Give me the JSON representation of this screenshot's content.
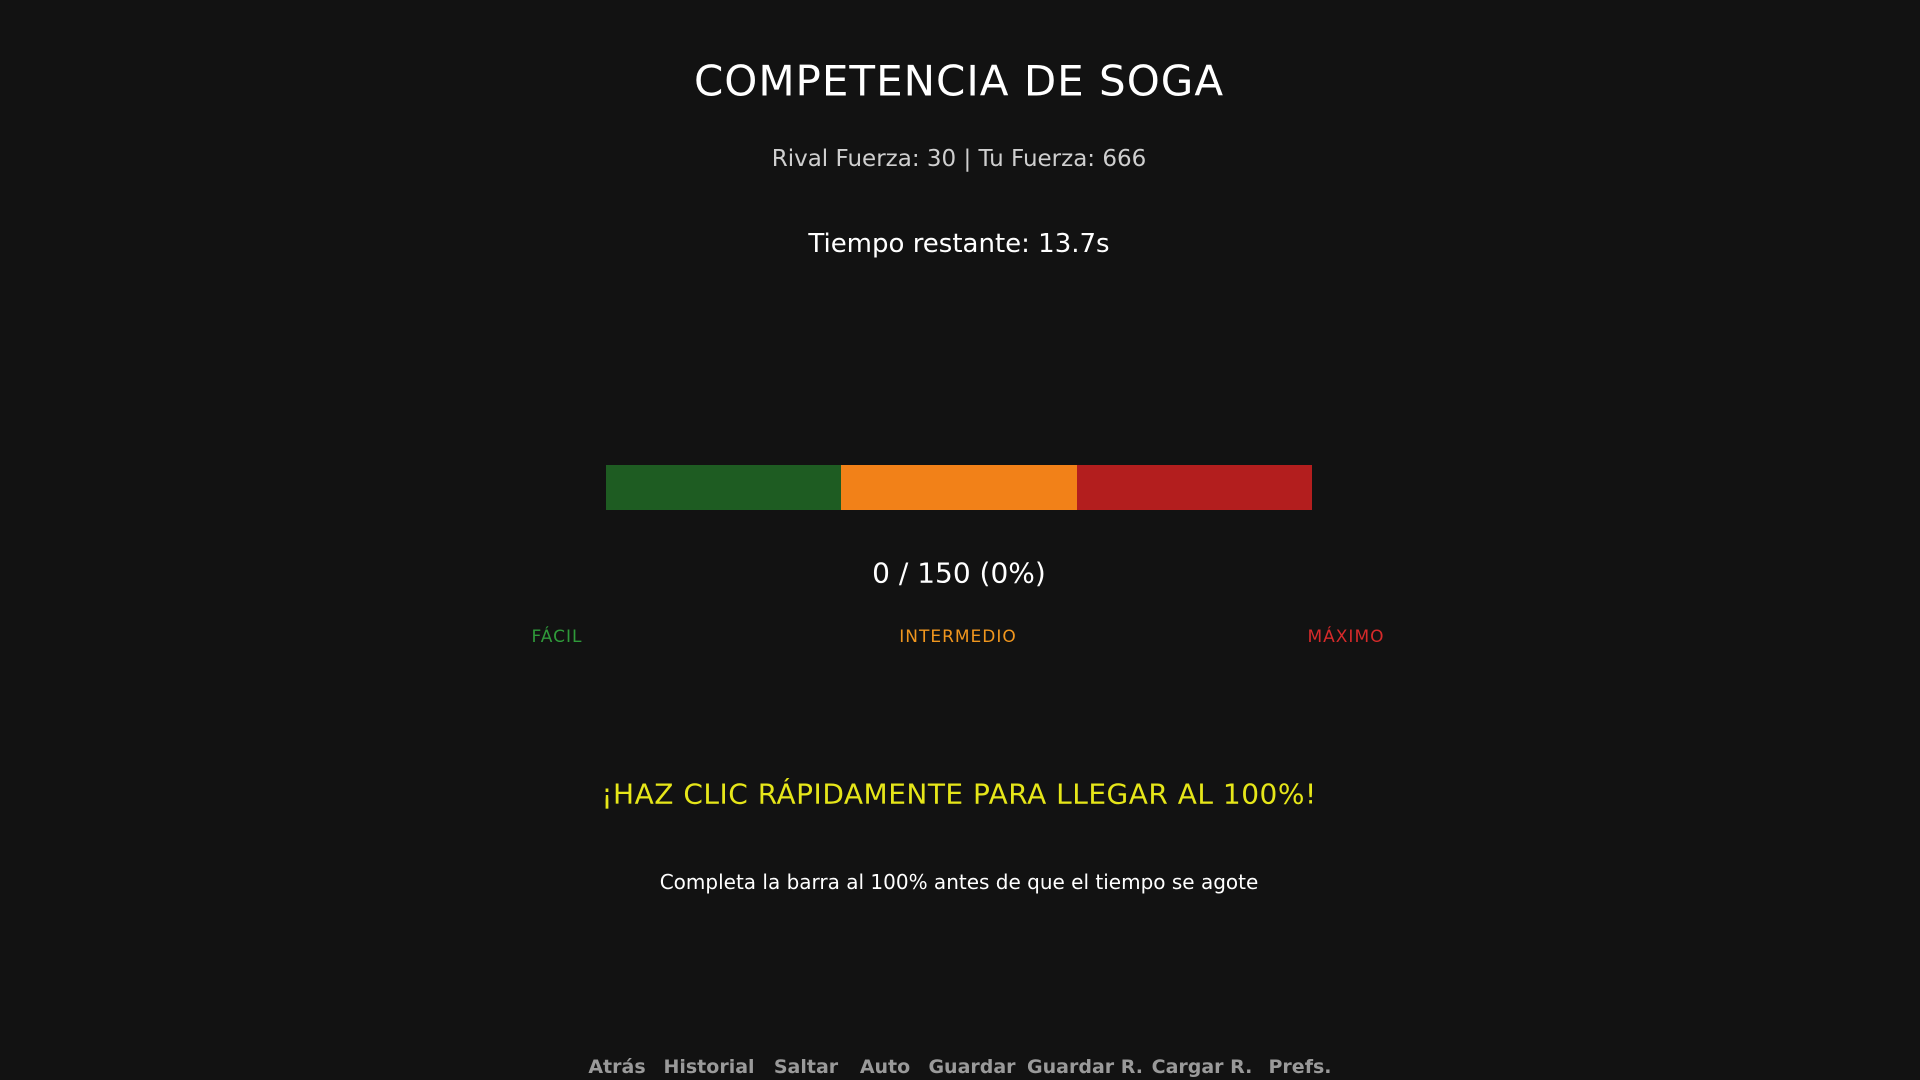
{
  "header": {
    "title": "COMPETENCIA DE SOGA",
    "stats": "Rival Fuerza: 30 | Tu Fuerza: 666",
    "timer": "Tiempo restante: 13.7s"
  },
  "meter": {
    "progress": "0 / 150 (0%)",
    "zones": [
      "FÁCIL",
      "INTERMEDIO",
      "MÁXIMO"
    ]
  },
  "instructions": {
    "call": "¡HAZ CLIC RÁPIDAMENTE PARA LLEGAR AL 100%!",
    "hint": "Completa la barra al 100% antes de que el tiempo se agote"
  },
  "menu": [
    "Atrás",
    "Historial",
    "Saltar",
    "Auto",
    "Guardar",
    "Guardar R.",
    "Cargar R.",
    "Prefs."
  ]
}
